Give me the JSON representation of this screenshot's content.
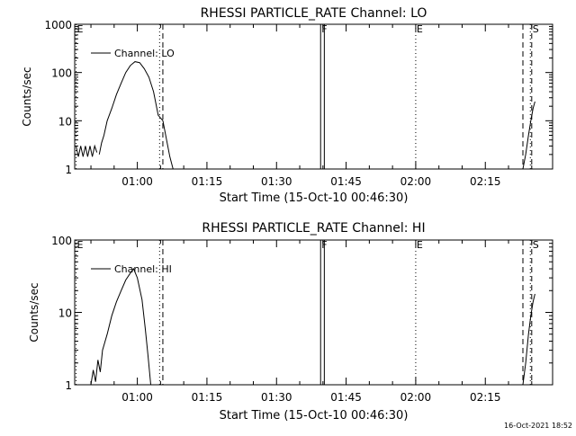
{
  "timestamp": "16-Oct-2021 18:52",
  "chart_data": [
    {
      "type": "line",
      "title": "RHESSI PARTICLE_RATE Channel: LO",
      "xlabel": "Start Time (15-Oct-10 00:46:30)",
      "ylabel": "Counts/sec",
      "legend": {
        "label": "Channel: LO",
        "position": "top-left"
      },
      "x_unit": "minutes after 00:46:30",
      "xlim": [
        0,
        103
      ],
      "ylim": [
        1,
        1000
      ],
      "y_scale": "log",
      "x_ticks": [
        {
          "label": "01:00",
          "x": 13.5
        },
        {
          "label": "01:15",
          "x": 28.5
        },
        {
          "label": "01:30",
          "x": 43.5
        },
        {
          "label": "01:45",
          "x": 58.5
        },
        {
          "label": "02:00",
          "x": 73.5
        },
        {
          "label": "02:15",
          "x": 88.5
        }
      ],
      "y_ticks": [
        {
          "label": "1",
          "y": 1
        },
        {
          "label": "10",
          "y": 10
        },
        {
          "label": "100",
          "y": 100
        },
        {
          "label": "1000",
          "y": 1000
        }
      ],
      "markers": [
        {
          "label": "E",
          "x": 0.3,
          "style": "dotted"
        },
        {
          "label": "",
          "x": 18.3,
          "style": "dotted"
        },
        {
          "label": "",
          "x": 19.0,
          "style": "dashed"
        },
        {
          "label": "F",
          "x": 53.0,
          "style": "solid"
        },
        {
          "label": "",
          "x": 53.8,
          "style": "solid"
        },
        {
          "label": "E",
          "x": 73.5,
          "style": "dotted"
        },
        {
          "label": "",
          "x": 96.6,
          "style": "dashed"
        },
        {
          "label": "S",
          "x": 98.5,
          "style": "dashed"
        },
        {
          "label": "",
          "x": 98.2,
          "style": "dotted"
        }
      ],
      "series": [
        {
          "segments": [
            {
              "x": [
                0.3,
                0.8,
                1.3,
                1.8,
                2.3,
                2.8,
                3.3,
                3.8,
                4.3,
                4.8
              ],
              "y": [
                3.0,
                1.8,
                3.0,
                1.8,
                3.0,
                1.8,
                3.0,
                1.8,
                3.0,
                2.2
              ]
            },
            {
              "x": [
                5.3,
                5.8,
                6.3,
                7,
                8,
                9,
                10,
                11,
                12,
                13,
                14,
                15,
                16,
                17,
                18,
                19,
                19.8,
                20.5,
                21.2
              ],
              "y": [
                2.0,
                3.5,
                5,
                10,
                18,
                35,
                60,
                100,
                140,
                168,
                160,
                120,
                80,
                40,
                13,
                10,
                4,
                1.8,
                1
              ]
            },
            {
              "x": [
                96.6,
                97.2,
                97.8,
                98.3,
                98.8,
                99.2
              ],
              "y": [
                1,
                2,
                5,
                10,
                18,
                25
              ]
            }
          ]
        }
      ]
    },
    {
      "type": "line",
      "title": "RHESSI PARTICLE_RATE Channel: HI",
      "xlabel": "Start Time (15-Oct-10 00:46:30)",
      "ylabel": "Counts/sec",
      "legend": {
        "label": "Channel: HI",
        "position": "top-left"
      },
      "x_unit": "minutes after 00:46:30",
      "xlim": [
        0,
        103
      ],
      "ylim": [
        1,
        100
      ],
      "y_scale": "log",
      "x_ticks": [
        {
          "label": "01:00",
          "x": 13.5
        },
        {
          "label": "01:15",
          "x": 28.5
        },
        {
          "label": "01:30",
          "x": 43.5
        },
        {
          "label": "01:45",
          "x": 58.5
        },
        {
          "label": "02:00",
          "x": 73.5
        },
        {
          "label": "02:15",
          "x": 88.5
        }
      ],
      "y_ticks": [
        {
          "label": "1",
          "y": 1
        },
        {
          "label": "10",
          "y": 10
        },
        {
          "label": "100",
          "y": 100
        }
      ],
      "markers": [
        {
          "label": "E",
          "x": 0.3,
          "style": "dotted"
        },
        {
          "label": "",
          "x": 18.3,
          "style": "dotted"
        },
        {
          "label": "",
          "x": 19.0,
          "style": "dashed"
        },
        {
          "label": "F",
          "x": 53.0,
          "style": "solid"
        },
        {
          "label": "",
          "x": 53.8,
          "style": "solid"
        },
        {
          "label": "E",
          "x": 73.5,
          "style": "dotted"
        },
        {
          "label": "",
          "x": 96.6,
          "style": "dashed"
        },
        {
          "label": "S",
          "x": 98.5,
          "style": "dashed"
        },
        {
          "label": "",
          "x": 98.2,
          "style": "dotted"
        }
      ],
      "series": [
        {
          "segments": [
            {
              "x": [
                3.5,
                4.0,
                4.5,
                5.0,
                5.5,
                6,
                7,
                8,
                9,
                10,
                11,
                12,
                12.7,
                13.5,
                14.5,
                15.2,
                15.8,
                16.4
              ],
              "y": [
                1,
                1.6,
                1.1,
                2.2,
                1.5,
                3,
                5,
                9,
                14,
                20,
                28,
                35,
                40,
                30,
                15,
                6,
                2.5,
                1
              ]
            },
            {
              "x": [
                96.6,
                97.2,
                97.8,
                98.3,
                98.8,
                99.2
              ],
              "y": [
                1,
                2,
                5,
                9,
                14,
                18
              ]
            }
          ]
        }
      ]
    }
  ]
}
